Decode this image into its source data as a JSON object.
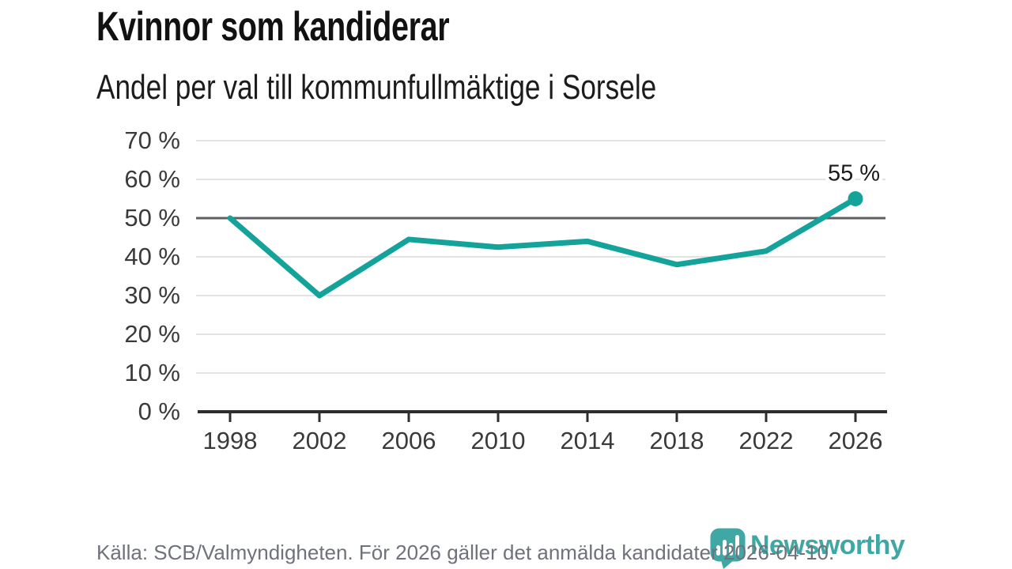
{
  "header": {
    "title": "Kvinnor som kandiderar",
    "subtitle": "Andel per val till kommunfullmäktige i Sorsele"
  },
  "chart_data": {
    "type": "line",
    "title": "Kvinnor som kandiderar",
    "subtitle": "Andel per val till kommunfullmäktige i Sorsele",
    "categories": [
      "1998",
      "2002",
      "2006",
      "2010",
      "2014",
      "2018",
      "2022",
      "2026"
    ],
    "values": [
      50,
      30,
      44.5,
      42.5,
      44,
      38,
      41.5,
      55
    ],
    "unit": "%",
    "ylim": [
      0,
      70
    ],
    "ytick_step": 10,
    "ytick_labels": [
      "0 %",
      "10 %",
      "20 %",
      "30 %",
      "40 %",
      "50 %",
      "60 %",
      "70 %"
    ],
    "reference_line": 50,
    "end_label": "55 %",
    "grid": true,
    "legend": "none",
    "line_color": "#14a39b",
    "marker_last_point": true
  },
  "colors": {
    "accent_teal": "#14a39b",
    "brand_teal": "#3fa7a4",
    "grid_light": "#e3e3e3",
    "grid_reference": "#5d6065",
    "axis_dark": "#2d2d2d",
    "tick_label": "#3a3a3a",
    "annotation": "#1a1a1a"
  },
  "footer": {
    "source": "Källa: SCB/Valmyndigheten. För 2026 gäller det anmälda kandidater 2026-04-10.",
    "brand": "Newsworthy"
  }
}
